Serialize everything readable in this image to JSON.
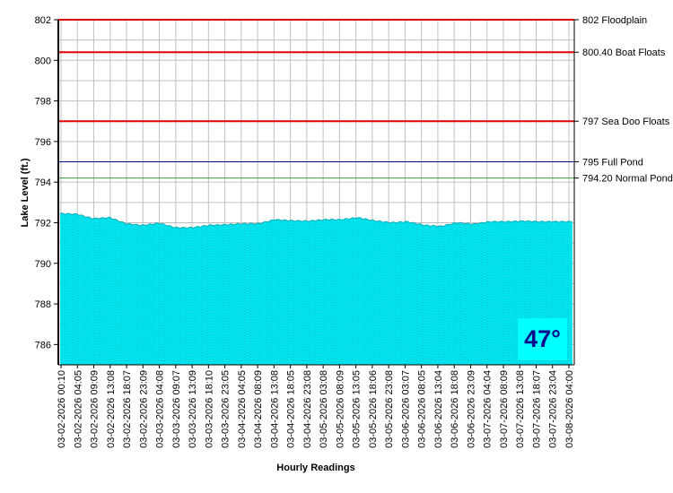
{
  "chart_data": {
    "type": "area",
    "ylabel": "Lake Level (ft.)",
    "xlabel": "Hourly Readings",
    "ylim": [
      785,
      802
    ],
    "y_ticks": [
      786,
      788,
      790,
      792,
      794,
      796,
      798,
      800,
      802
    ],
    "grid": true,
    "fill_color": "#00e5ef",
    "x_tick_labels": [
      "03-02-2026 00:10",
      "03-02-2026 04:05",
      "03-02-2026 09:09",
      "03-02-2026 13:08",
      "03-02-2026 18:07",
      "03-02-2026 23:09",
      "03-03-2026 04:08",
      "03-03-2026 09:07",
      "03-03-2026 13:09",
      "03-03-2026 18:10",
      "03-03-2026 23:05",
      "03-04-2026 04:05",
      "03-04-2026 08:09",
      "03-04-2026 13:08",
      "03-04-2026 18:05",
      "03-04-2026 23:08",
      "03-05-2026 03:08",
      "03-05-2026 08:09",
      "03-05-2026 13:05",
      "03-05-2026 18:06",
      "03-05-2026 23:08",
      "03-06-2026 03:07",
      "03-06-2026 08:05",
      "03-06-2026 13:04",
      "03-06-2026 18:08",
      "03-06-2026 23:09",
      "03-07-2026 04:04",
      "03-07-2026 08:09",
      "03-07-2026 13:08",
      "03-07-2026 18:07",
      "03-07-2026 23:04",
      "03-08-2026 04:00"
    ],
    "series": [
      {
        "values": [
          792.45,
          792.42,
          792.2,
          792.25,
          791.95,
          791.87,
          791.98,
          791.75,
          791.76,
          791.87,
          791.9,
          791.95,
          791.95,
          792.15,
          792.1,
          792.08,
          792.15,
          792.15,
          792.25,
          792.1,
          792.0,
          792.05,
          791.88,
          791.82,
          792.0,
          791.93,
          792.05,
          792.05,
          792.08,
          792.05,
          792.05,
          792.05
        ]
      }
    ],
    "reference_lines": [
      {
        "value": 802,
        "label": "802 Floodplain",
        "color": "#e00000"
      },
      {
        "value": 800.4,
        "label": "800.40 Boat Floats",
        "color": "#e00000"
      },
      {
        "value": 797,
        "label": "797 Sea Doo Floats",
        "color": "#e00000"
      },
      {
        "value": 795,
        "label": "795 Full Pond",
        "color": "#000080"
      },
      {
        "value": 794.2,
        "label": "794.20 Normal Pond",
        "color": "#3a9a3a"
      }
    ]
  },
  "temperature": "47°"
}
